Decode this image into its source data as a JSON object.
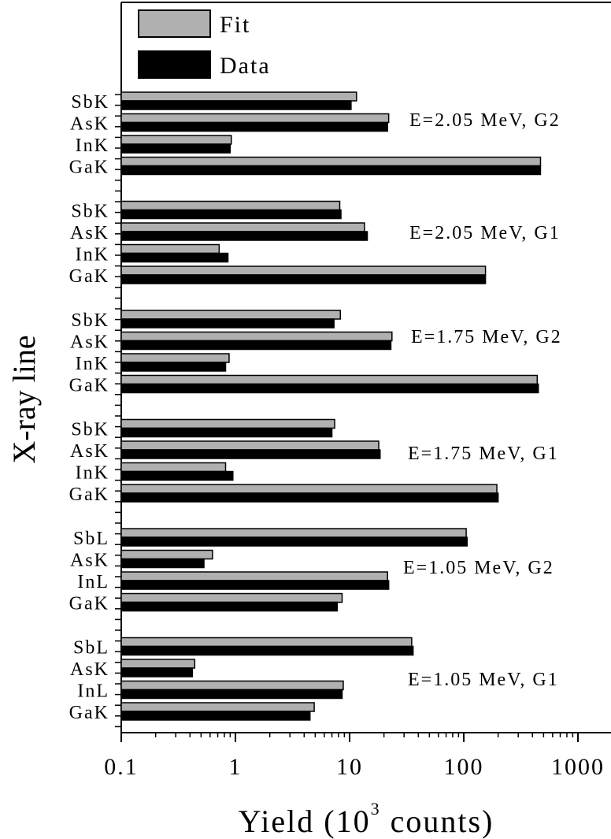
{
  "chart_data": {
    "type": "bar",
    "orientation": "horizontal",
    "xscale": "log",
    "xlim": [
      0.1,
      1000
    ],
    "xticks": [
      "0.1",
      "1",
      "10",
      "100",
      "1000"
    ],
    "xlabel_main": "Yield (10",
    "xlabel_sup": "3",
    "xlabel_tail": " counts)",
    "ylabel": "X-ray line",
    "legend_position": "top-left",
    "legend": [
      {
        "name": "Fit",
        "color": "#b0b0b0"
      },
      {
        "name": "Data",
        "color": "#000000"
      }
    ],
    "groups": [
      {
        "label": "E=2.05 MeV, G2",
        "bars": [
          {
            "line": "SbK",
            "fit": 11.5,
            "data": 10.3
          },
          {
            "line": "AsK",
            "fit": 22,
            "data": 21.5
          },
          {
            "line": "InK",
            "fit": 0.92,
            "data": 0.9
          },
          {
            "line": "GaK",
            "fit": 470,
            "data": 470
          }
        ]
      },
      {
        "label": "E=2.05 MeV, G1",
        "bars": [
          {
            "line": "SbK",
            "fit": 8.2,
            "data": 8.4
          },
          {
            "line": "AsK",
            "fit": 13.5,
            "data": 14.3
          },
          {
            "line": "InK",
            "fit": 0.72,
            "data": 0.86
          },
          {
            "line": "GaK",
            "fit": 155,
            "data": 155
          }
        ]
      },
      {
        "label": "E=1.75 MeV, G2",
        "bars": [
          {
            "line": "SbK",
            "fit": 8.3,
            "data": 7.3
          },
          {
            "line": "AsK",
            "fit": 23.5,
            "data": 23
          },
          {
            "line": "InK",
            "fit": 0.88,
            "data": 0.82
          },
          {
            "line": "GaK",
            "fit": 440,
            "data": 450
          }
        ]
      },
      {
        "label": "E=1.75 MeV, G1",
        "bars": [
          {
            "line": "SbK",
            "fit": 7.4,
            "data": 7
          },
          {
            "line": "AsK",
            "fit": 18,
            "data": 18.5
          },
          {
            "line": "InK",
            "fit": 0.82,
            "data": 0.95
          },
          {
            "line": "GaK",
            "fit": 195,
            "data": 200
          }
        ]
      },
      {
        "label": "E=1.05 MeV, G2",
        "bars": [
          {
            "line": "SbL",
            "fit": 105,
            "data": 107
          },
          {
            "line": "AsK",
            "fit": 0.63,
            "data": 0.53
          },
          {
            "line": "InL",
            "fit": 21.5,
            "data": 22
          },
          {
            "line": "GaK",
            "fit": 8.6,
            "data": 7.8
          }
        ]
      },
      {
        "label": "E=1.05 MeV, G1",
        "bars": [
          {
            "line": "SbL",
            "fit": 35,
            "data": 36
          },
          {
            "line": "AsK",
            "fit": 0.44,
            "data": 0.42
          },
          {
            "line": "InL",
            "fit": 8.8,
            "data": 8.6
          },
          {
            "line": "GaK",
            "fit": 4.9,
            "data": 4.5
          }
        ]
      }
    ]
  }
}
